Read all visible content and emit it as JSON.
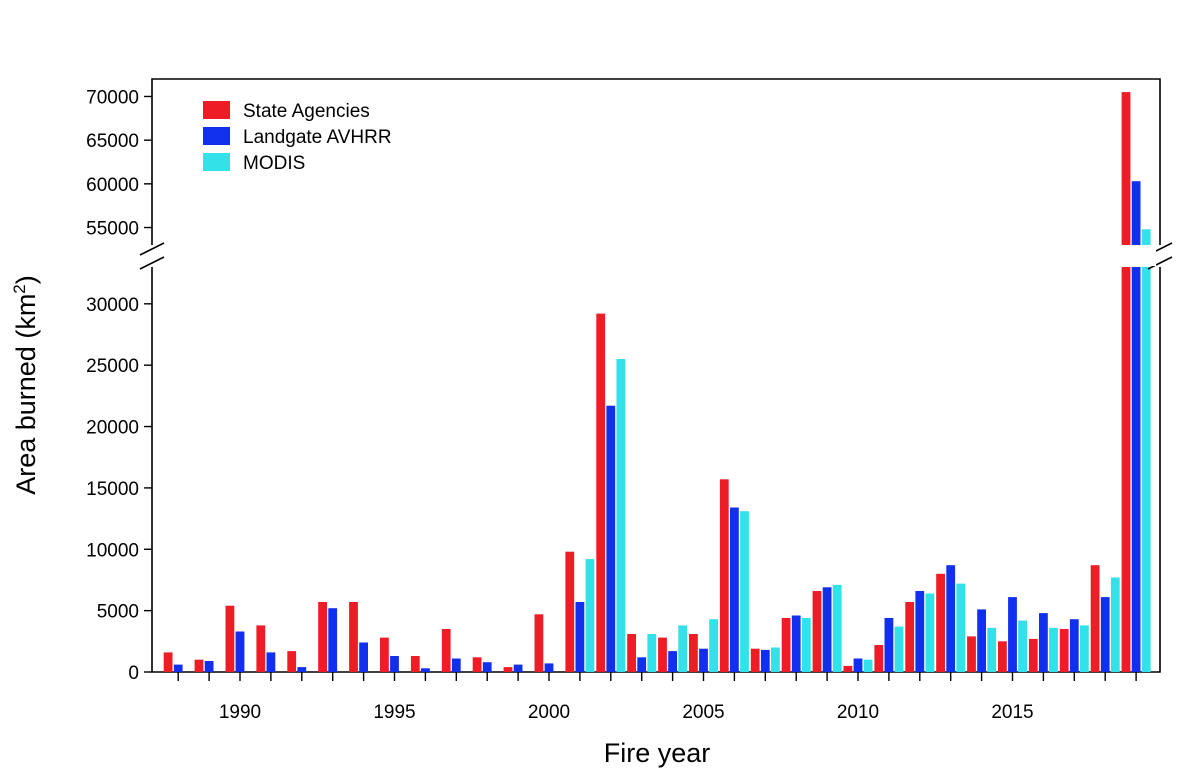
{
  "chart_data": {
    "type": "bar",
    "title": "",
    "xlabel": "Fire year",
    "ylabel_main": "Area burned (km",
    "ylabel_sup": "2",
    "ylabel_close": ")",
    "axis_break": true,
    "ylim_lower": [
      0,
      33000
    ],
    "ylim_upper": [
      53000,
      72000
    ],
    "y_ticks_lower": [
      0,
      5000,
      10000,
      15000,
      20000,
      25000,
      30000
    ],
    "y_ticks_upper": [
      55000,
      60000,
      65000,
      70000
    ],
    "y_tick_labels_lower": [
      "0",
      "5000",
      "10000",
      "15000",
      "20000",
      "25000",
      "30000"
    ],
    "y_tick_labels_upper": [
      "55000",
      "60000",
      "65000",
      "70000"
    ],
    "x_ticks": [
      1990,
      1995,
      2000,
      2005,
      2010,
      2015
    ],
    "x_tick_labels": [
      "1990",
      "1995",
      "2000",
      "2005",
      "2010",
      "2015"
    ],
    "grid": false,
    "legend_position": "top-left",
    "categories": [
      1988,
      1989,
      1990,
      1991,
      1992,
      1993,
      1994,
      1995,
      1996,
      1997,
      1998,
      1999,
      2000,
      2001,
      2002,
      2003,
      2004,
      2005,
      2006,
      2007,
      2008,
      2009,
      2010,
      2011,
      2012,
      2013,
      2014,
      2015,
      2016,
      2017,
      2018,
      2019
    ],
    "series": [
      {
        "name": "State Agencies",
        "color": "#ee1c25",
        "values": [
          1600,
          1000,
          5400,
          3800,
          1700,
          5700,
          5700,
          2800,
          1300,
          3500,
          1200,
          400,
          4700,
          9800,
          29200,
          3100,
          2800,
          3100,
          15700,
          1900,
          4400,
          6600,
          500,
          2200,
          5700,
          8000,
          2900,
          2500,
          2700,
          3500,
          8700,
          70500
        ]
      },
      {
        "name": "Landgate AVHRR",
        "color": "#1030ee",
        "values": [
          600,
          900,
          3300,
          1600,
          400,
          5200,
          2400,
          1300,
          300,
          1100,
          800,
          600,
          700,
          5700,
          21700,
          1200,
          1700,
          1900,
          13400,
          1800,
          4600,
          6900,
          1100,
          4400,
          6600,
          8700,
          5100,
          6100,
          4800,
          4300,
          6100,
          60300
        ]
      },
      {
        "name": "MODIS",
        "color": "#33e1e8",
        "values": [
          null,
          null,
          null,
          null,
          null,
          null,
          null,
          null,
          null,
          null,
          null,
          null,
          null,
          9200,
          25500,
          3100,
          3800,
          4300,
          13100,
          2000,
          4400,
          7100,
          1000,
          3700,
          6400,
          7200,
          3600,
          4200,
          3600,
          3800,
          7700,
          54800
        ]
      }
    ]
  }
}
